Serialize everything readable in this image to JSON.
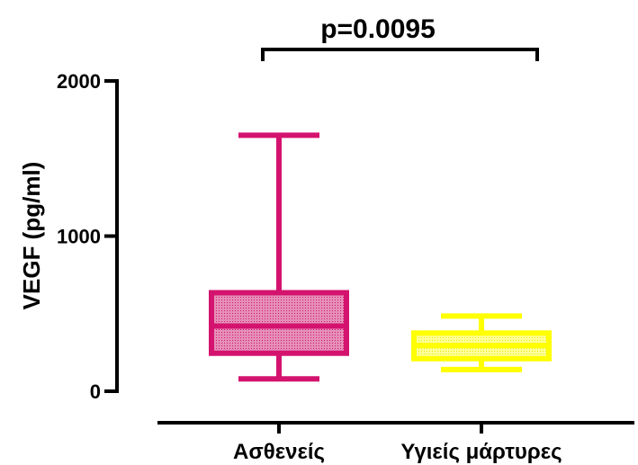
{
  "chart_data": {
    "type": "box",
    "title": "",
    "xlabel": "",
    "ylabel": "VEGF (pg/ml)",
    "ylim": [
      0,
      2000
    ],
    "yticks": [
      {
        "value": 0,
        "label": "0"
      },
      {
        "value": 1000,
        "label": "1000"
      },
      {
        "value": 2000,
        "label": "2000"
      }
    ],
    "categories": [
      "Ασθενείς",
      "Υγιείς μάρτυρες"
    ],
    "boxes": [
      {
        "category": "Ασθενείς",
        "min": 80,
        "q1": 245,
        "median": 420,
        "q3": 635,
        "max": 1650,
        "color": "#d4136e"
      },
      {
        "category": "Υγιείς μάρτυρες",
        "min": 140,
        "q1": 210,
        "median": 295,
        "q3": 375,
        "max": 485,
        "color": "#ffff00"
      }
    ],
    "annotation": {
      "text": "p=0.0095"
    },
    "grid": false,
    "legend": false
  }
}
